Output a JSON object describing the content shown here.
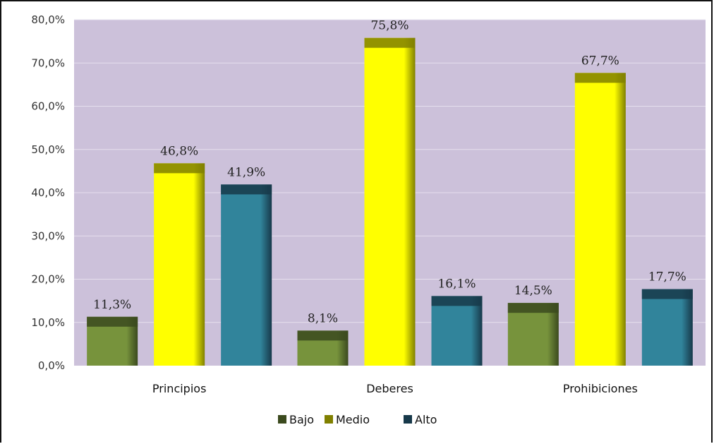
{
  "chart_data": {
    "type": "bar",
    "categories": [
      "Principios",
      "Deberes",
      "Prohibiciones"
    ],
    "series": [
      {
        "name": "Bajo",
        "values": [
          11.3,
          8.1,
          14.5
        ],
        "labels": [
          "11,3%",
          "8,1%",
          "14,5%"
        ],
        "color": "#77933c",
        "dark": "#3b4a1e"
      },
      {
        "name": "Medio",
        "values": [
          46.8,
          75.8,
          67.7
        ],
        "labels": [
          "46,8%",
          "75,8%",
          "67,7%"
        ],
        "color": "#ffff00",
        "dark": "#808000"
      },
      {
        "name": "Alto",
        "values": [
          41.9,
          16.1,
          17.7
        ],
        "labels": [
          "41,9%",
          "16,1%",
          "17,7%"
        ],
        "color": "#31849b",
        "dark": "#17394a"
      }
    ],
    "y_ticks": [
      "0,0%",
      "10,0%",
      "20,0%",
      "30,0%",
      "40,0%",
      "50,0%",
      "60,0%",
      "70,0%",
      "80,0%"
    ],
    "ylim": [
      0,
      80
    ],
    "grid": true,
    "legend": "bottom",
    "plot_background": "#ccc1da",
    "title": "",
    "xlabel": "",
    "ylabel": ""
  }
}
